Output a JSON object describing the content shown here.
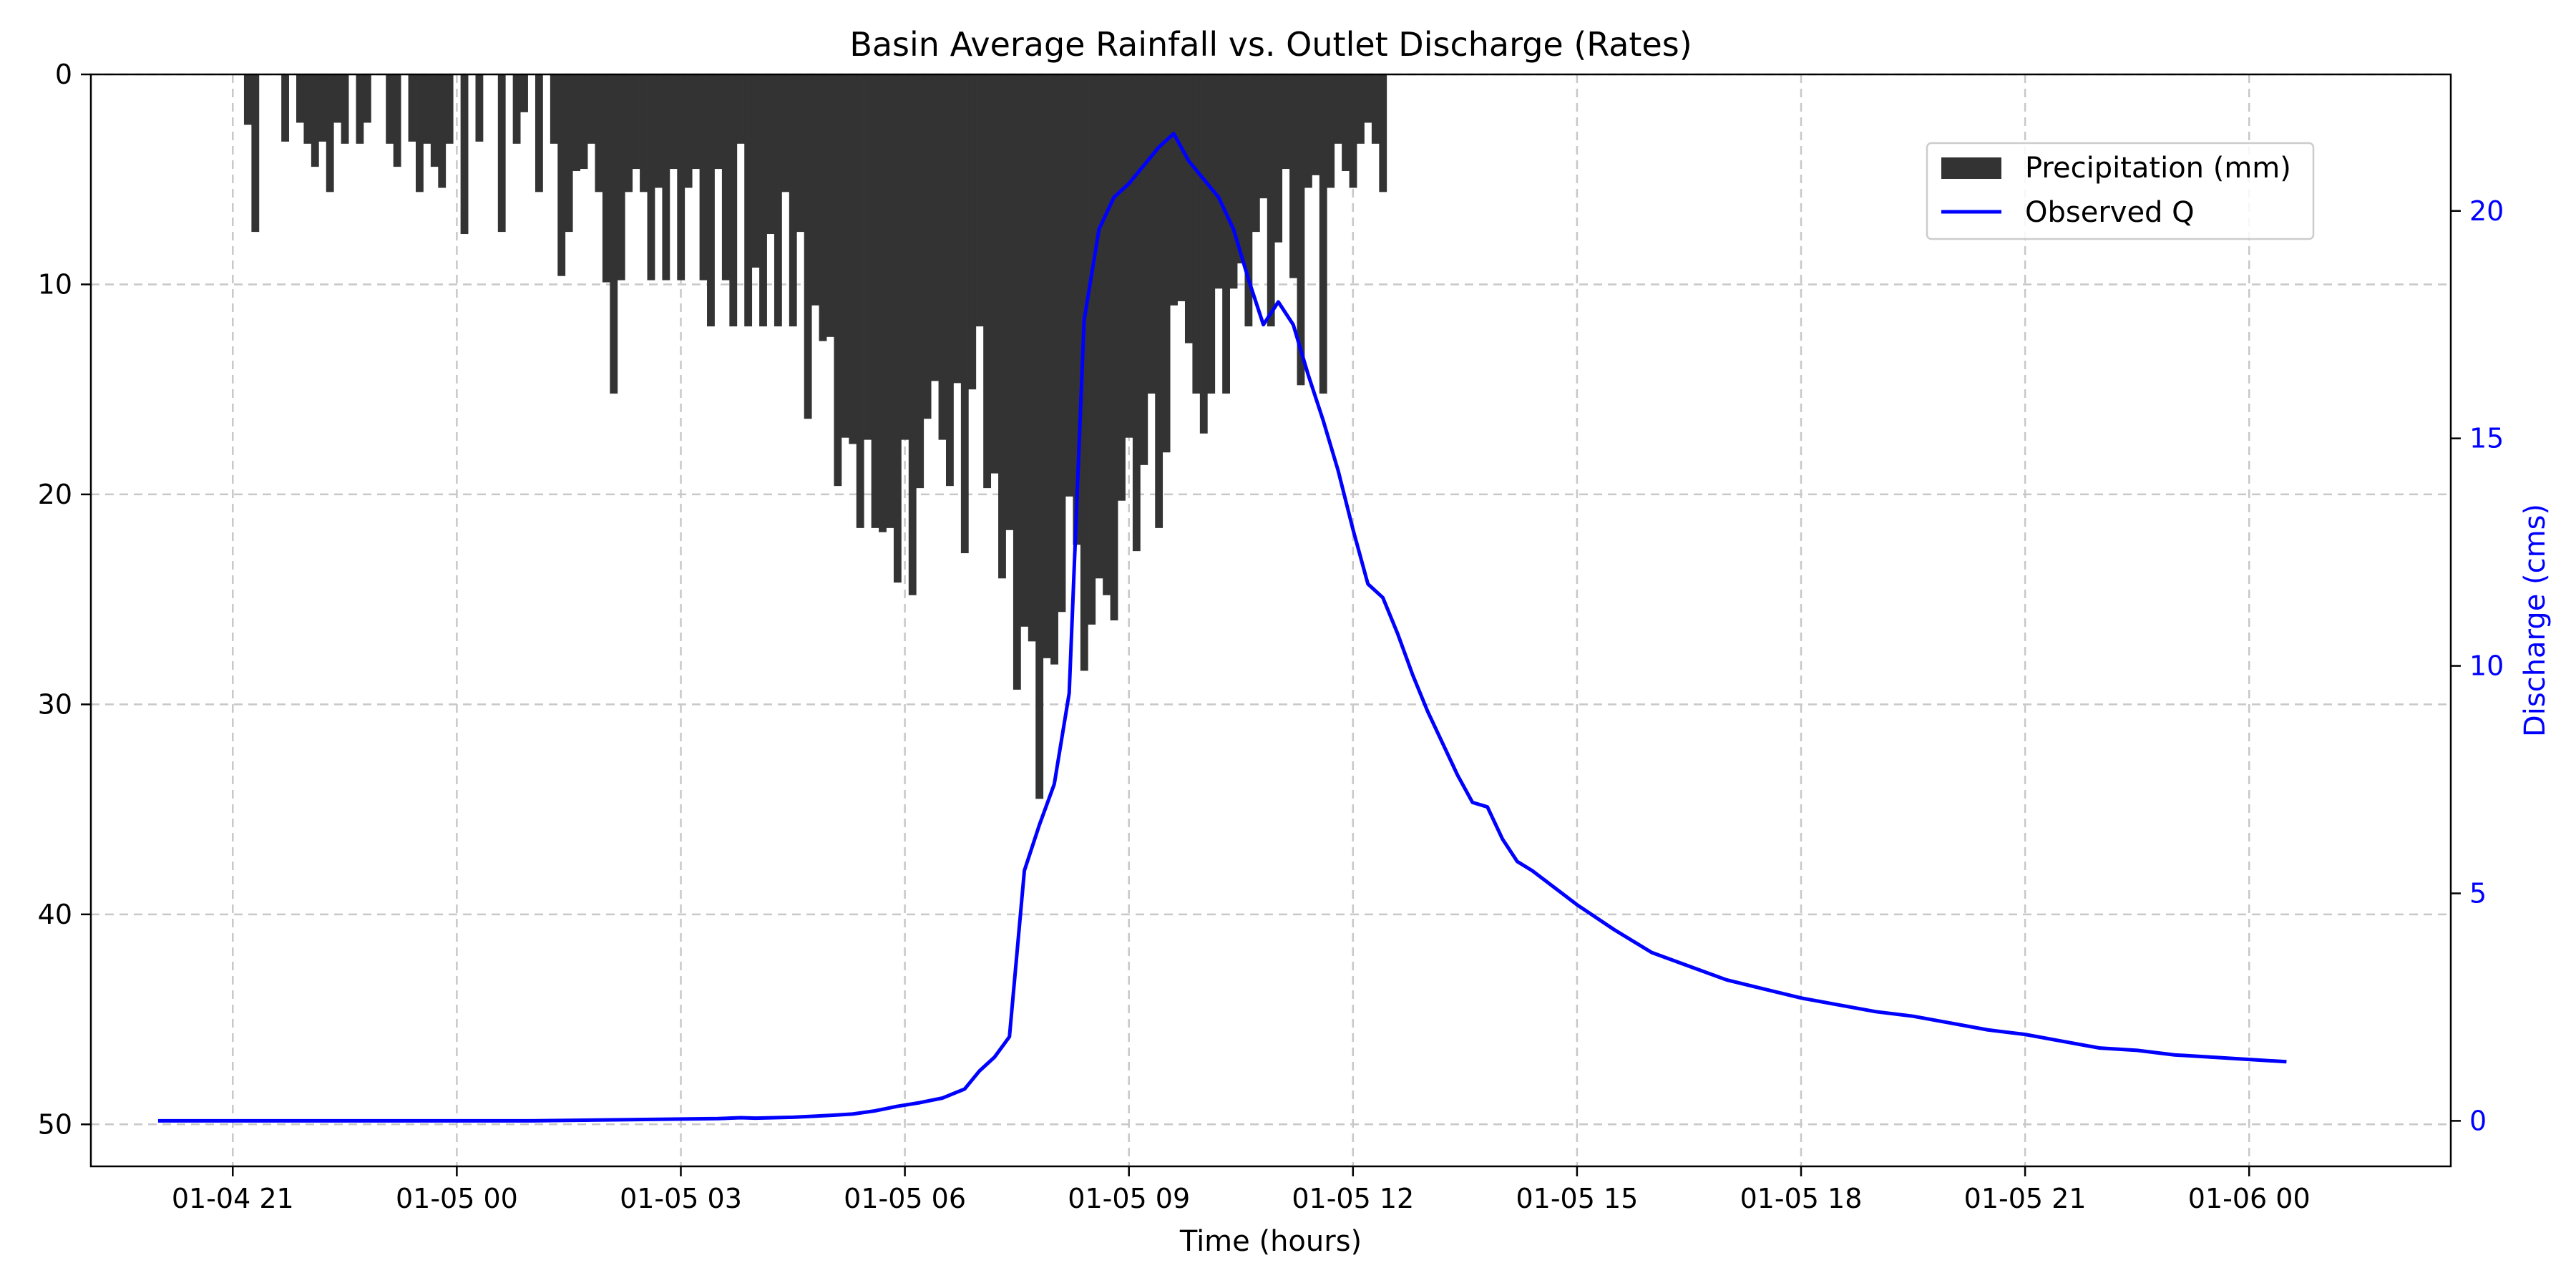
{
  "chart_data": {
    "type": "bar+line",
    "title": "Basin Average Rainfall vs. Outlet Discharge (Rates)",
    "xlabel": "Time (hours)",
    "ylabel_left": "",
    "ylabel_right": "Discharge (cms)",
    "x_range_hours": [
      -4.9,
      26.7
    ],
    "x_ticks": [
      {
        "h": -3,
        "label": "01-04 21"
      },
      {
        "h": 0,
        "label": "01-05 00"
      },
      {
        "h": 3,
        "label": "01-05 03"
      },
      {
        "h": 6,
        "label": "01-05 06"
      },
      {
        "h": 9,
        "label": "01-05 09"
      },
      {
        "h": 12,
        "label": "01-05 12"
      },
      {
        "h": 15,
        "label": "01-05 15"
      },
      {
        "h": 18,
        "label": "01-05 18"
      },
      {
        "h": 21,
        "label": "01-05 21"
      },
      {
        "h": 24,
        "label": "01-06 00"
      }
    ],
    "left_axis": {
      "inverted": true,
      "ylim": [
        0,
        52
      ],
      "ticks": [
        0,
        10,
        20,
        30,
        40,
        50
      ]
    },
    "right_axis": {
      "ylim": [
        -1,
        23
      ],
      "ticks": [
        0,
        5,
        10,
        15,
        20
      ],
      "color": "#0000ff"
    },
    "grid": true,
    "legend": {
      "position": "top-right",
      "entries": [
        {
          "name": "Precipitation (mm)",
          "kind": "bar",
          "color": "#333333"
        },
        {
          "name": "Observed Q",
          "kind": "line",
          "color": "#0000ff"
        }
      ]
    },
    "precipitation": {
      "name": "Precipitation (mm)",
      "color": "#333333",
      "start_hour": -2.8,
      "step_hours": 0.1,
      "values": [
        2.4,
        7.5,
        0,
        0,
        0,
        3.2,
        0,
        2.3,
        3.3,
        4.4,
        3.2,
        5.6,
        2.3,
        3.3,
        0,
        3.3,
        2.3,
        0,
        0,
        3.3,
        4.4,
        0,
        3.2,
        5.6,
        3.3,
        4.4,
        5.4,
        3.3,
        0,
        7.6,
        0,
        3.2,
        0,
        0,
        7.5,
        0,
        3.3,
        1.8,
        0,
        5.6,
        0,
        3.3,
        9.6,
        7.5,
        4.6,
        4.5,
        3.3,
        5.6,
        9.9,
        15.2,
        9.8,
        5.6,
        4.5,
        5.6,
        9.8,
        5.4,
        9.8,
        4.5,
        9.8,
        5.4,
        4.5,
        9.8,
        12.0,
        4.5,
        9.8,
        12.0,
        3.3,
        12.0,
        9.2,
        12.0,
        7.6,
        12.0,
        5.6,
        12.0,
        7.5,
        16.4,
        11.0,
        12.7,
        12.5,
        19.6,
        17.3,
        17.6,
        21.6,
        17.4,
        21.6,
        21.8,
        21.6,
        24.2,
        17.4,
        24.8,
        19.7,
        16.4,
        14.6,
        17.4,
        19.6,
        14.7,
        22.8,
        15.0,
        12.0,
        19.7,
        19.0,
        24.0,
        21.7,
        29.3,
        26.3,
        27.0,
        34.5,
        27.8,
        28.1,
        25.6,
        20.1,
        22.4,
        28.4,
        26.2,
        24.0,
        24.8,
        26.0,
        20.3,
        17.3,
        22.7,
        18.6,
        15.2,
        21.6,
        18.0,
        11.0,
        10.8,
        12.8,
        15.2,
        17.1,
        15.2,
        10.2,
        15.2,
        10.2,
        9.0,
        12.0,
        7.5,
        5.9,
        12.0,
        8.0,
        4.5,
        9.7,
        14.8,
        5.4,
        4.8,
        15.2,
        5.4,
        3.3,
        4.6,
        5.4,
        3.3,
        2.3,
        3.3,
        5.6,
        0,
        3.2,
        0,
        12.0,
        3.2,
        0,
        3.2,
        5.4,
        3.2,
        2.2,
        4.3,
        3.2,
        0,
        2.4
      ],
      "cap_hour": 12.5
    },
    "observed_q": {
      "name": "Observed Q",
      "color": "#0000ff",
      "hours": [
        -4.0,
        -3.0,
        -2.0,
        -1.0,
        0.0,
        1.0,
        2.0,
        3.0,
        3.5,
        3.8,
        4.0,
        4.5,
        5.0,
        5.3,
        5.6,
        5.9,
        6.2,
        6.5,
        6.8,
        7.0,
        7.2,
        7.4,
        7.6,
        7.8,
        8.0,
        8.2,
        8.4,
        8.6,
        8.8,
        9.0,
        9.2,
        9.4,
        9.6,
        9.8,
        10.0,
        10.2,
        10.4,
        10.6,
        10.8,
        11.0,
        11.2,
        11.4,
        11.6,
        11.8,
        12.0,
        12.2,
        12.4,
        12.6,
        12.8,
        13.0,
        13.2,
        13.4,
        13.6,
        13.8,
        14.0,
        14.2,
        14.4,
        14.6,
        14.8,
        15.0,
        15.5,
        16.0,
        16.5,
        17.0,
        17.5,
        18.0,
        18.5,
        19.0,
        19.5,
        20.0,
        20.5,
        21.0,
        21.5,
        22.0,
        22.5,
        23.0,
        23.5,
        24.0,
        24.5
      ],
      "values": [
        0.0,
        0.0,
        0.0,
        0.0,
        0.0,
        0.0,
        0.02,
        0.04,
        0.05,
        0.07,
        0.06,
        0.08,
        0.12,
        0.15,
        0.22,
        0.32,
        0.4,
        0.5,
        0.7,
        1.1,
        1.4,
        1.85,
        5.5,
        6.5,
        7.4,
        9.4,
        17.6,
        19.6,
        20.3,
        20.6,
        21.0,
        21.4,
        21.7,
        21.1,
        20.7,
        20.3,
        19.6,
        18.5,
        17.5,
        18.0,
        17.5,
        16.4,
        15.4,
        14.3,
        13.0,
        11.8,
        11.5,
        10.7,
        9.8,
        9.0,
        8.3,
        7.6,
        7.0,
        6.9,
        6.2,
        5.7,
        5.5,
        5.25,
        5.0,
        4.75,
        4.2,
        3.7,
        3.4,
        3.1,
        2.9,
        2.7,
        2.55,
        2.4,
        2.3,
        2.15,
        2.0,
        1.9,
        1.75,
        1.6,
        1.55,
        1.45,
        1.4,
        1.35,
        1.3
      ]
    }
  }
}
